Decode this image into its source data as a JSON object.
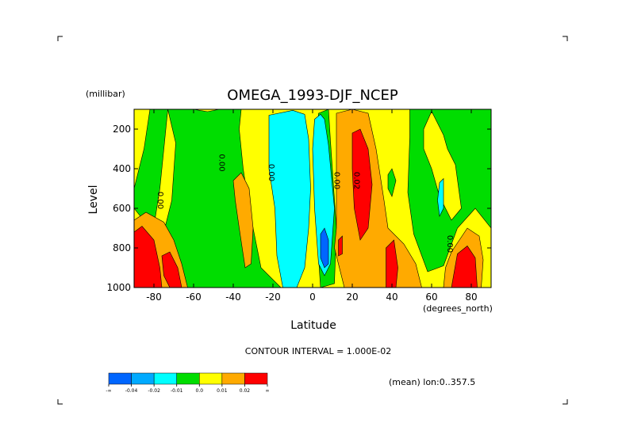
{
  "chart_data": {
    "type": "contour",
    "title": "OMEGA_1993-DJF_NCEP",
    "ylabel": "Level",
    "yunits": "(millibar)",
    "xlabel": "Latitude",
    "xunits": "(degrees_north)",
    "xlim": [
      -90,
      90
    ],
    "ylim": [
      1000,
      100
    ],
    "x_ticks": [
      -80,
      -60,
      -40,
      -20,
      0,
      20,
      40,
      60,
      80
    ],
    "x_tick_labels": [
      "-80",
      "-60",
      "-40",
      "-20",
      "0",
      "20",
      "40",
      "60",
      "80"
    ],
    "y_ticks": [
      200,
      400,
      600,
      800,
      1000
    ],
    "y_tick_labels": [
      "200",
      "400",
      "600",
      "800",
      "1000"
    ],
    "contour_interval_text": "CONTOUR INTERVAL = 1.000E-02",
    "footer_text": "(mean) lon:0..357.5",
    "contour_labels": [
      {
        "text": "0.00",
        "lat": -78,
        "lev": 560
      },
      {
        "text": "0.00",
        "lat": -47,
        "lev": 370
      },
      {
        "text": "0.00",
        "lat": -22,
        "lev": 420
      },
      {
        "text": "0.00",
        "lat": 11,
        "lev": 460
      },
      {
        "text": "0.02",
        "lat": 21,
        "lev": 460
      },
      {
        "text": "0.00",
        "lat": 68,
        "lev": 780
      }
    ],
    "colorbar": {
      "levels": [
        "-∞",
        "-0.04",
        "-0.02",
        "-0.01",
        "0.0",
        "0.01",
        "0.02",
        "∞"
      ],
      "colors": [
        "#0066ff",
        "#00aaff",
        "#00ffff",
        "#00dd00",
        "#ffff00",
        "#ffaa00",
        "#ff0000"
      ]
    },
    "regions": [
      {
        "color": "#ffff00",
        "pts": [
          [
            -90,
            100
          ],
          [
            90,
            100
          ],
          [
            90,
            1000
          ],
          [
            -90,
            1000
          ]
        ]
      },
      {
        "color": "#00dd00",
        "pts": [
          [
            -82,
            100
          ],
          [
            -60,
            100
          ],
          [
            -53,
            112
          ],
          [
            -47,
            100
          ],
          [
            -36,
            100
          ],
          [
            -37,
            200
          ],
          [
            -35,
            400
          ],
          [
            -32,
            600
          ],
          [
            -26,
            900
          ],
          [
            -16,
            1000
          ],
          [
            -65,
            1000
          ],
          [
            -70,
            880
          ],
          [
            -82,
            700
          ],
          [
            -90,
            600
          ],
          [
            -90,
            500
          ],
          [
            -85,
            300
          ]
        ]
      },
      {
        "color": "#ffff00",
        "pts": [
          [
            -73,
            100
          ],
          [
            -69,
            270
          ],
          [
            -71,
            560
          ],
          [
            -75,
            720
          ],
          [
            -80,
            690
          ],
          [
            -77,
            500
          ]
        ]
      },
      {
        "color": "#00dd00",
        "pts": [
          [
            3,
            120
          ],
          [
            8,
            100
          ],
          [
            9,
            260
          ],
          [
            12,
            700
          ],
          [
            11,
            980
          ],
          [
            4,
            1000
          ],
          [
            2,
            700
          ],
          [
            1,
            400
          ]
        ]
      },
      {
        "color": "#00dd00",
        "pts": [
          [
            49,
            100
          ],
          [
            90,
            100
          ],
          [
            90,
            700
          ],
          [
            82,
            600
          ],
          [
            73,
            700
          ],
          [
            66,
            890
          ],
          [
            58,
            920
          ],
          [
            51,
            730
          ],
          [
            48,
            520
          ],
          [
            49,
            240
          ]
        ]
      },
      {
        "color": "#ffff00",
        "pts": [
          [
            60,
            110
          ],
          [
            66,
            230
          ],
          [
            68,
            300
          ],
          [
            72,
            380
          ],
          [
            75,
            600
          ],
          [
            70,
            660
          ],
          [
            64,
            540
          ],
          [
            60,
            400
          ],
          [
            56,
            300
          ],
          [
            56,
            200
          ]
        ]
      },
      {
        "color": "#ffaa00",
        "pts": [
          [
            -40,
            460
          ],
          [
            -36,
            420
          ],
          [
            -32,
            500
          ],
          [
            -30,
            700
          ],
          [
            -31,
            880
          ],
          [
            -34,
            900
          ],
          [
            -37,
            700
          ],
          [
            -39,
            560
          ]
        ]
      },
      {
        "color": "#00ffff",
        "pts": [
          [
            -22,
            130
          ],
          [
            -10,
            105
          ],
          [
            -4,
            125
          ],
          [
            -2,
            250
          ],
          [
            -1,
            500
          ],
          [
            -2,
            700
          ],
          [
            -4,
            900
          ],
          [
            -8,
            1000
          ],
          [
            -15,
            1000
          ],
          [
            -18,
            840
          ],
          [
            -19,
            600
          ],
          [
            -22,
            400
          ]
        ]
      },
      {
        "color": "#00ffff",
        "pts": [
          [
            1,
            150
          ],
          [
            4,
            125
          ],
          [
            6,
            150
          ],
          [
            8,
            280
          ],
          [
            11,
            600
          ],
          [
            9,
            880
          ],
          [
            6,
            940
          ],
          [
            3,
            880
          ],
          [
            1,
            600
          ],
          [
            0,
            300
          ]
        ]
      },
      {
        "color": "#0066ff",
        "pts": [
          [
            4,
            730
          ],
          [
            6,
            700
          ],
          [
            8,
            760
          ],
          [
            8,
            880
          ],
          [
            6,
            900
          ],
          [
            4,
            850
          ]
        ]
      },
      {
        "color": "#ffaa00",
        "pts": [
          [
            12,
            120
          ],
          [
            20,
            100
          ],
          [
            28,
            120
          ],
          [
            32,
            300
          ],
          [
            36,
            560
          ],
          [
            38,
            700
          ],
          [
            46,
            780
          ],
          [
            52,
            880
          ],
          [
            55,
            1000
          ],
          [
            16,
            1000
          ],
          [
            11,
            800
          ],
          [
            12,
            700
          ],
          [
            12,
            500
          ],
          [
            12,
            300
          ]
        ]
      },
      {
        "color": "#ff0000",
        "pts": [
          [
            20,
            220
          ],
          [
            24,
            200
          ],
          [
            28,
            300
          ],
          [
            30,
            480
          ],
          [
            28,
            700
          ],
          [
            24,
            760
          ],
          [
            21,
            600
          ],
          [
            20,
            400
          ]
        ]
      },
      {
        "color": "#ff0000",
        "pts": [
          [
            13,
            760
          ],
          [
            15,
            740
          ],
          [
            15,
            830
          ],
          [
            13,
            840
          ]
        ]
      },
      {
        "color": "#ff0000",
        "pts": [
          [
            37,
            800
          ],
          [
            41,
            760
          ],
          [
            43,
            900
          ],
          [
            42,
            1000
          ],
          [
            37,
            1000
          ]
        ]
      },
      {
        "color": "#00dd00",
        "pts": [
          [
            38,
            430
          ],
          [
            40,
            400
          ],
          [
            42,
            460
          ],
          [
            40,
            540
          ],
          [
            38,
            500
          ]
        ]
      },
      {
        "color": "#ffaa00",
        "pts": [
          [
            -90,
            660
          ],
          [
            -84,
            620
          ],
          [
            -75,
            670
          ],
          [
            -70,
            760
          ],
          [
            -66,
            880
          ],
          [
            -63,
            1000
          ],
          [
            -90,
            1000
          ]
        ]
      },
      {
        "color": "#ff0000",
        "pts": [
          [
            -90,
            720
          ],
          [
            -86,
            690
          ],
          [
            -80,
            760
          ],
          [
            -77,
            900
          ],
          [
            -76,
            1000
          ],
          [
            -90,
            1000
          ]
        ]
      },
      {
        "color": "#ff0000",
        "pts": [
          [
            -76,
            840
          ],
          [
            -72,
            820
          ],
          [
            -68,
            900
          ],
          [
            -66,
            1000
          ],
          [
            -72,
            1000
          ],
          [
            -75,
            940
          ]
        ]
      },
      {
        "color": "#ffaa00",
        "pts": [
          [
            70,
            820
          ],
          [
            78,
            700
          ],
          [
            84,
            740
          ],
          [
            86,
            860
          ],
          [
            85,
            1000
          ],
          [
            66,
            1000
          ],
          [
            67,
            900
          ]
        ]
      },
      {
        "color": "#ff0000",
        "pts": [
          [
            73,
            830
          ],
          [
            78,
            790
          ],
          [
            82,
            850
          ],
          [
            83,
            1000
          ],
          [
            70,
            1000
          ]
        ]
      },
      {
        "color": "#00ffff",
        "pts": [
          [
            64,
            470
          ],
          [
            66,
            450
          ],
          [
            66,
            600
          ],
          [
            64,
            640
          ],
          [
            63,
            560
          ]
        ]
      }
    ]
  }
}
